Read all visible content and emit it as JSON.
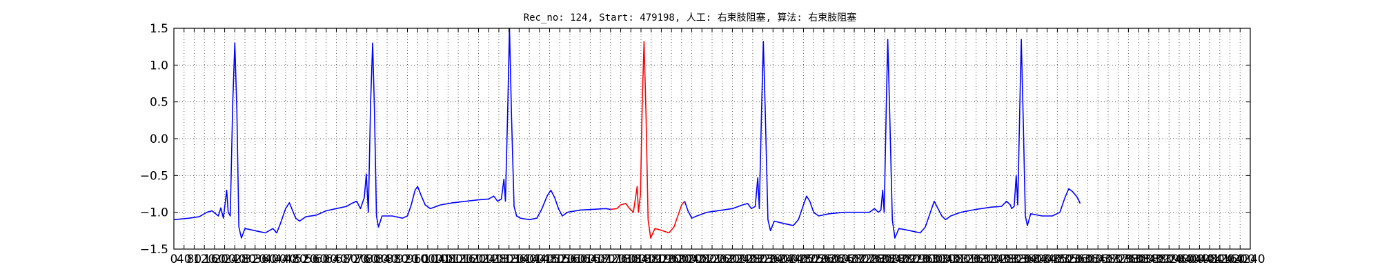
{
  "chart_data": {
    "type": "line",
    "title": "Rec_no: 124, Start: 479198, 人工: 右束肢阻塞, 算法: 右束肢阻塞",
    "xlabel": "",
    "ylabel": "",
    "xlim": [
      0,
      4240
    ],
    "ylim": [
      -1.5,
      1.5
    ],
    "grid": true,
    "legend": "none",
    "colors": {
      "normal": "#0000ff",
      "highlight": "#ff0000",
      "grid": "#555555",
      "axes": "#000000"
    },
    "yticks": [
      1.5,
      1.0,
      0.5,
      0.0,
      -0.5,
      -1.0,
      -1.5
    ],
    "ytick_labels": [
      "1.5",
      "1.0",
      "0.5",
      "0.0",
      "−0.5",
      "−1.0",
      "−1.5"
    ],
    "xticks": [
      0,
      40,
      80,
      120,
      160,
      200,
      240,
      280,
      320,
      360,
      400,
      440,
      480,
      520,
      560,
      600,
      640,
      680,
      720,
      760,
      800,
      840,
      880,
      920,
      960,
      1000,
      1040,
      1080,
      1120,
      1160,
      1200,
      1240,
      1280,
      1320,
      1360,
      1400,
      1440,
      1480,
      1520,
      1560,
      1600,
      1640,
      1680,
      1720,
      1760,
      1800,
      1840,
      1880,
      1920,
      1960,
      2000,
      2040,
      2080,
      2120,
      2160,
      2200,
      2240,
      2280,
      2320,
      2360,
      2400,
      2440,
      2480,
      2520,
      2560,
      2600,
      2640,
      2680,
      2720,
      2760,
      2800,
      2840,
      2880,
      2920,
      2960,
      3000,
      3040,
      3080,
      3120,
      3160,
      3200,
      3240,
      3280,
      3320,
      3360,
      3400,
      3440,
      3480,
      3520,
      3560,
      3600,
      3640,
      3680,
      3720,
      3760,
      3800,
      3840,
      3880,
      3920,
      3960,
      4000,
      4040,
      4080,
      4120,
      4160,
      4200,
      4240
    ],
    "xtick_labels": [
      "0",
      "40",
      "80",
      "120",
      "160",
      "200",
      "240",
      "280",
      "320",
      "360",
      "400",
      "440",
      "480",
      "520",
      "560",
      "600",
      "640",
      "680",
      "720",
      "760",
      "800",
      "840",
      "880",
      "920",
      "960",
      "1000",
      "1040",
      "1080",
      "1120",
      "1160",
      "1200",
      "1240",
      "1280",
      "1320",
      "1360",
      "1400",
      "1440",
      "1480",
      "1520",
      "1560",
      "1600",
      "1640",
      "1680",
      "1720",
      "1760",
      "1800",
      "1840",
      "1880",
      "1920",
      "1960",
      "2000",
      "2040",
      "2080",
      "2120",
      "2160",
      "2200",
      "2240",
      "2280",
      "2320",
      "2360",
      "2400",
      "2440",
      "2480",
      "2520",
      "2560",
      "2600",
      "2640",
      "2680",
      "2720",
      "2760",
      "2800",
      "2840",
      "2880",
      "2920",
      "2960",
      "3000",
      "3040",
      "3080",
      "3120",
      "3160",
      "3200",
      "3240",
      "3280",
      "3320",
      "3360",
      "3400",
      "3440",
      "3480",
      "3520",
      "3560",
      "3600",
      "3640",
      "3680",
      "3720",
      "3760",
      "3800",
      "3840",
      "3880",
      "3920",
      "3960",
      "4000",
      "4040",
      "4080",
      "4120",
      "4160",
      "4200",
      "4240"
    ],
    "x_end": 3700,
    "series": [
      {
        "role": "normal",
        "points": [
          [
            0,
            -1.1
          ],
          [
            60,
            -1.08
          ],
          [
            100,
            -1.06
          ],
          [
            130,
            -1.0
          ],
          [
            150,
            -0.98
          ],
          [
            165,
            -1.02
          ],
          [
            175,
            -1.05
          ],
          [
            185,
            -0.94
          ],
          [
            195,
            -1.08
          ],
          [
            208,
            -0.7
          ],
          [
            214,
            -1.0
          ],
          [
            222,
            -1.05
          ],
          [
            232,
            0.5
          ],
          [
            240,
            1.3
          ],
          [
            248,
            0.4
          ],
          [
            256,
            -1.2
          ],
          [
            266,
            -1.35
          ],
          [
            280,
            -1.22
          ],
          [
            320,
            -1.25
          ],
          [
            360,
            -1.28
          ],
          [
            390,
            -1.22
          ],
          [
            405,
            -1.28
          ],
          [
            420,
            -1.15
          ],
          [
            440,
            -0.95
          ],
          [
            455,
            -0.87
          ],
          [
            468,
            -0.98
          ],
          [
            480,
            -1.08
          ],
          [
            495,
            -1.12
          ],
          [
            520,
            -1.06
          ],
          [
            560,
            -1.04
          ],
          [
            600,
            -0.98
          ],
          [
            640,
            -0.95
          ],
          [
            680,
            -0.92
          ],
          [
            700,
            -0.88
          ],
          [
            720,
            -0.85
          ],
          [
            735,
            -0.95
          ],
          [
            750,
            -0.8
          ],
          [
            758,
            -0.48
          ],
          [
            766,
            -1.0
          ],
          [
            775,
            0.5
          ],
          [
            783,
            1.3
          ],
          [
            790,
            0.4
          ],
          [
            798,
            -1.05
          ],
          [
            806,
            -1.2
          ],
          [
            820,
            -1.05
          ],
          [
            860,
            -1.05
          ],
          [
            900,
            -1.08
          ],
          [
            920,
            -1.05
          ],
          [
            935,
            -0.9
          ],
          [
            950,
            -0.7
          ],
          [
            960,
            -0.65
          ],
          [
            975,
            -0.78
          ],
          [
            990,
            -0.9
          ],
          [
            1010,
            -0.95
          ],
          [
            1050,
            -0.9
          ],
          [
            1100,
            -0.87
          ],
          [
            1150,
            -0.85
          ],
          [
            1200,
            -0.83
          ],
          [
            1240,
            -0.82
          ],
          [
            1260,
            -0.78
          ],
          [
            1275,
            -0.85
          ],
          [
            1290,
            -0.82
          ],
          [
            1300,
            -0.55
          ],
          [
            1306,
            -0.85
          ],
          [
            1315,
            0.4
          ],
          [
            1322,
            1.5
          ],
          [
            1330,
            0.3
          ],
          [
            1340,
            -0.92
          ],
          [
            1350,
            -1.05
          ],
          [
            1365,
            -1.08
          ],
          [
            1400,
            -1.1
          ],
          [
            1430,
            -1.08
          ],
          [
            1450,
            -0.95
          ],
          [
            1470,
            -0.78
          ],
          [
            1485,
            -0.7
          ],
          [
            1500,
            -0.8
          ],
          [
            1515,
            -0.95
          ],
          [
            1530,
            -1.05
          ],
          [
            1550,
            -1.0
          ],
          [
            1600,
            -0.97
          ],
          [
            1650,
            -0.96
          ],
          [
            1700,
            -0.95
          ],
          [
            1720,
            -0.96
          ]
        ]
      },
      {
        "role": "highlight",
        "points": [
          [
            1720,
            -0.96
          ],
          [
            1745,
            -0.95
          ],
          [
            1760,
            -0.9
          ],
          [
            1780,
            -0.88
          ],
          [
            1795,
            -0.95
          ],
          [
            1810,
            -1.0
          ],
          [
            1825,
            -0.65
          ],
          [
            1830,
            -1.0
          ],
          [
            1838,
            -0.75
          ],
          [
            1845,
            0.5
          ],
          [
            1852,
            1.32
          ],
          [
            1860,
            0.3
          ],
          [
            1868,
            -1.1
          ],
          [
            1878,
            -1.35
          ],
          [
            1895,
            -1.22
          ],
          [
            1925,
            -1.25
          ],
          [
            1950,
            -1.28
          ],
          [
            1970,
            -1.2
          ],
          [
            1985,
            -1.05
          ],
          [
            2000,
            -0.9
          ],
          [
            2012,
            -0.85
          ]
        ]
      },
      {
        "role": "normal",
        "points": [
          [
            2012,
            -0.85
          ],
          [
            2025,
            -0.98
          ],
          [
            2040,
            -1.08
          ],
          [
            2060,
            -1.05
          ],
          [
            2100,
            -1.0
          ],
          [
            2140,
            -0.98
          ],
          [
            2200,
            -0.95
          ],
          [
            2240,
            -0.9
          ],
          [
            2260,
            -0.88
          ],
          [
            2275,
            -0.95
          ],
          [
            2290,
            -0.92
          ],
          [
            2300,
            -0.53
          ],
          [
            2306,
            -0.95
          ],
          [
            2315,
            0.4
          ],
          [
            2322,
            1.32
          ],
          [
            2330,
            0.3
          ],
          [
            2340,
            -1.1
          ],
          [
            2350,
            -1.25
          ],
          [
            2365,
            -1.12
          ],
          [
            2400,
            -1.15
          ],
          [
            2440,
            -1.18
          ],
          [
            2460,
            -1.1
          ],
          [
            2480,
            -0.9
          ],
          [
            2492,
            -0.78
          ],
          [
            2505,
            -0.85
          ],
          [
            2520,
            -1.0
          ],
          [
            2540,
            -1.05
          ],
          [
            2580,
            -1.02
          ],
          [
            2640,
            -1.0
          ],
          [
            2700,
            -1.0
          ],
          [
            2740,
            -1.0
          ],
          [
            2760,
            -0.95
          ],
          [
            2775,
            -1.0
          ],
          [
            2785,
            -0.97
          ],
          [
            2792,
            -0.7
          ],
          [
            2798,
            -1.0
          ],
          [
            2806,
            0.4
          ],
          [
            2812,
            1.35
          ],
          [
            2820,
            0.3
          ],
          [
            2830,
            -1.1
          ],
          [
            2840,
            -1.35
          ],
          [
            2856,
            -1.22
          ],
          [
            2900,
            -1.25
          ],
          [
            2940,
            -1.28
          ],
          [
            2960,
            -1.2
          ],
          [
            2980,
            -1.0
          ],
          [
            2995,
            -0.85
          ],
          [
            3010,
            -0.95
          ],
          [
            3025,
            -1.05
          ],
          [
            3040,
            -1.1
          ],
          [
            3060,
            -1.05
          ],
          [
            3100,
            -1.0
          ],
          [
            3160,
            -0.96
          ],
          [
            3220,
            -0.93
          ],
          [
            3260,
            -0.92
          ],
          [
            3280,
            -0.85
          ],
          [
            3295,
            -0.9
          ],
          [
            3300,
            -0.95
          ],
          [
            3310,
            -0.92
          ],
          [
            3318,
            -0.5
          ],
          [
            3324,
            -0.9
          ],
          [
            3332,
            0.4
          ],
          [
            3338,
            1.35
          ],
          [
            3346,
            0.2
          ],
          [
            3354,
            -1.05
          ],
          [
            3362,
            -1.18
          ],
          [
            3375,
            -1.02
          ],
          [
            3420,
            -1.05
          ],
          [
            3460,
            -1.05
          ],
          [
            3490,
            -1.0
          ],
          [
            3510,
            -0.8
          ],
          [
            3525,
            -0.68
          ],
          [
            3540,
            -0.72
          ],
          [
            3555,
            -0.78
          ],
          [
            3562,
            -0.82
          ],
          [
            3570,
            -0.88
          ]
        ]
      }
    ]
  }
}
